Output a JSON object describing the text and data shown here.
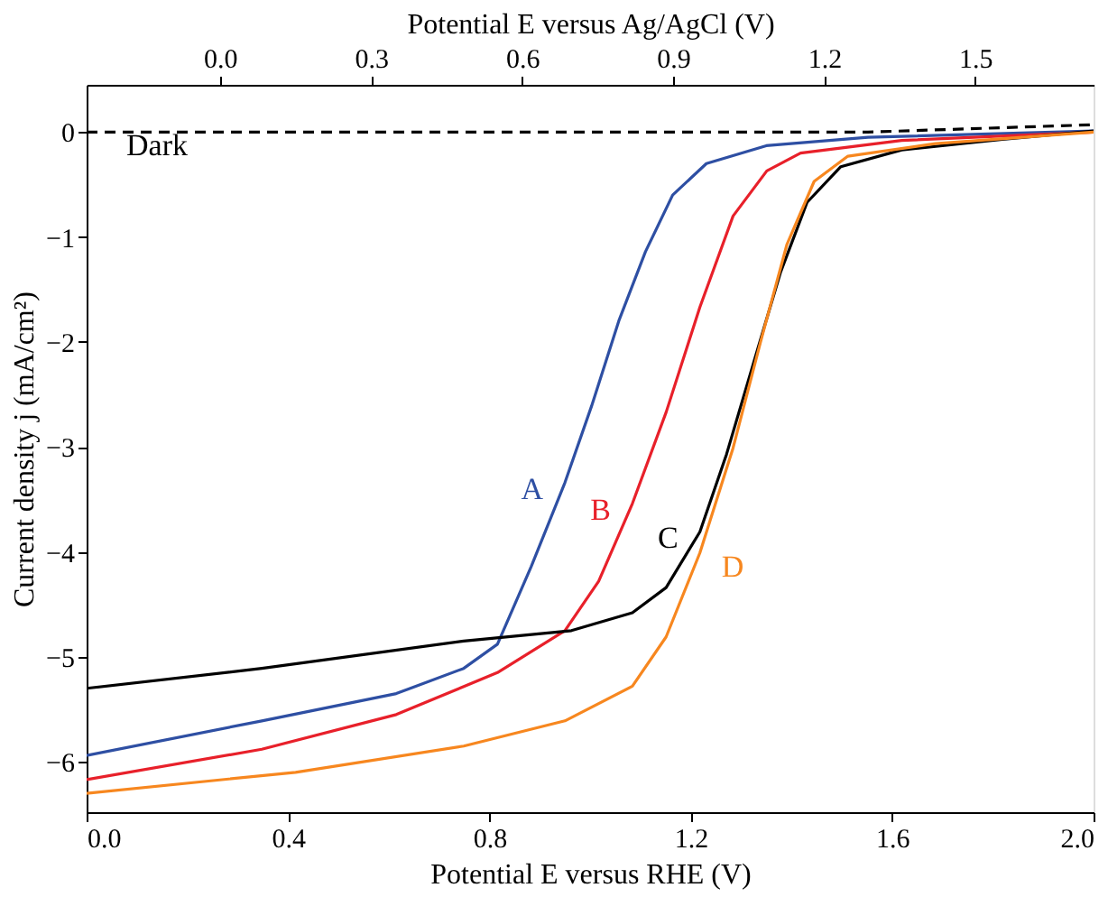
{
  "chart_data": {
    "type": "line",
    "xlabel": "Potential E versus RHE (V)",
    "x2label": "Potential E versus Ag/AgCl (V)",
    "ylabel": "Current density j (mA/cm²)",
    "xlim": [
      0,
      2.0
    ],
    "xticks": [
      {
        "value": 0,
        "label": "0.0"
      },
      0.4,
      0.8,
      1.2,
      1.6,
      {
        "value": 2,
        "label": "2.0"
      }
    ],
    "x2lim": [
      -0.265,
      1.735
    ],
    "x2ticks": [
      {
        "value": 0,
        "label": "0.0"
      },
      0.3,
      0.6,
      0.9,
      1.2,
      1.5
    ],
    "ylim": [
      -6.48,
      0.45
    ],
    "yticks": [
      0,
      -1,
      -2,
      -3,
      -4,
      -5,
      -6
    ],
    "grid": false,
    "series": [
      {
        "name": "A",
        "color": "#2e4fa3",
        "line_style": "solid",
        "x": [
          0,
          0.348,
          0.615,
          0.749,
          0.816,
          0.883,
          0.95,
          1.003,
          1.057,
          1.11,
          1.164,
          1.231,
          1.35,
          1.552,
          2.0
        ],
        "values": [
          -5.94,
          -5.61,
          -5.35,
          -5.11,
          -4.88,
          -4.14,
          -3.34,
          -2.61,
          -1.8,
          -1.14,
          -0.6,
          -0.3,
          -0.13,
          -0.05,
          0.01
        ]
      },
      {
        "name": "B",
        "color": "#e8202a",
        "line_style": "solid",
        "x": [
          0,
          0.348,
          0.615,
          0.816,
          0.95,
          1.017,
          1.084,
          1.151,
          1.218,
          1.284,
          1.351,
          1.418,
          1.619,
          2.0
        ],
        "values": [
          -6.17,
          -5.88,
          -5.55,
          -5.15,
          -4.75,
          -4.28,
          -3.54,
          -2.67,
          -1.67,
          -0.8,
          -0.37,
          -0.2,
          -0.08,
          0
        ]
      },
      {
        "name": "C",
        "color": "#000000",
        "line_style": "solid",
        "x": [
          0,
          0.348,
          0.749,
          0.963,
          1.084,
          1.151,
          1.218,
          1.271,
          1.324,
          1.378,
          1.431,
          1.498,
          1.619,
          1.819,
          2.0
        ],
        "values": [
          -5.3,
          -5.11,
          -4.85,
          -4.75,
          -4.58,
          -4.34,
          -3.81,
          -3.07,
          -2.21,
          -1.34,
          -0.67,
          -0.33,
          -0.17,
          -0.07,
          0.01
        ]
      },
      {
        "name": "D",
        "color": "#f7871f",
        "line_style": "solid",
        "x": [
          0,
          0.415,
          0.749,
          0.95,
          1.084,
          1.151,
          1.218,
          1.284,
          1.338,
          1.391,
          1.445,
          1.512,
          1.686,
          2.0
        ],
        "values": [
          -6.3,
          -6.1,
          -5.85,
          -5.61,
          -5.28,
          -4.81,
          -4.01,
          -3.01,
          -2.01,
          -1.07,
          -0.47,
          -0.23,
          -0.11,
          0
        ]
      },
      {
        "color": "#000000",
        "line_style": "dashed",
        "x": [
          0,
          1.552,
          2.0
        ],
        "values": [
          0,
          0,
          0.07
        ]
      }
    ],
    "annotations": [
      "Dark"
    ]
  }
}
